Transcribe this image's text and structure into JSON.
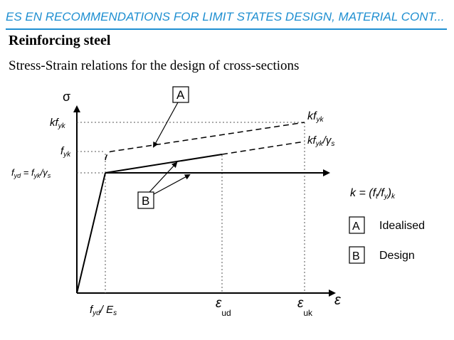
{
  "slide": {
    "title": "ES EN  RECOMMENDATIONS FOR LIMIT STATES DESIGN, MATERIAL CONT...",
    "heading": "Reinforcing steel",
    "subheading": "Stress-Strain relations for the design of cross-sections"
  },
  "figure": {
    "y_axis_symbol": "σ",
    "x_axis_symbol": "ε",
    "y_tick_kfyk": "kf",
    "y_tick_kfyk_sub": "yk",
    "y_tick_fyk": "f",
    "y_tick_fyk_sub": "yk",
    "y_tick_fyd_a": "f",
    "y_tick_fyd_a_sub": "yd",
    "y_tick_fyd_b": " = f",
    "y_tick_fyd_b_sub": "yk",
    "y_tick_fyd_c": "/γ",
    "y_tick_fyd_c_sub": "s",
    "x_tick_fyd_es_a": "f",
    "x_tick_fyd_es_a_sub": "yd",
    "x_tick_fyd_es_b": "/ E",
    "x_tick_fyd_es_b_sub": "s",
    "x_tick_eud": "ε",
    "x_tick_eud_sub": "ud",
    "x_tick_euk": "ε",
    "x_tick_euk_sub": "uk",
    "right_label_kfyk": "kf",
    "right_label_kfyk_sub": "yk",
    "right_label_fyk_gs_a": "kf",
    "right_label_fyk_gs_a_sub": "yk",
    "right_label_fyk_gs_b": "/γ",
    "right_label_fyk_gs_b_sub": "s",
    "k_formula_a": "k = (f",
    "k_formula_a_sub": "t",
    "k_formula_b": "/f",
    "k_formula_b_sub": "y",
    "k_formula_c": ")",
    "k_formula_c_sub": "k",
    "box_a": "A",
    "box_b": "B",
    "legend": [
      {
        "key": "A",
        "label": "Idealised"
      },
      {
        "key": "B",
        "label": "Design"
      }
    ]
  }
}
